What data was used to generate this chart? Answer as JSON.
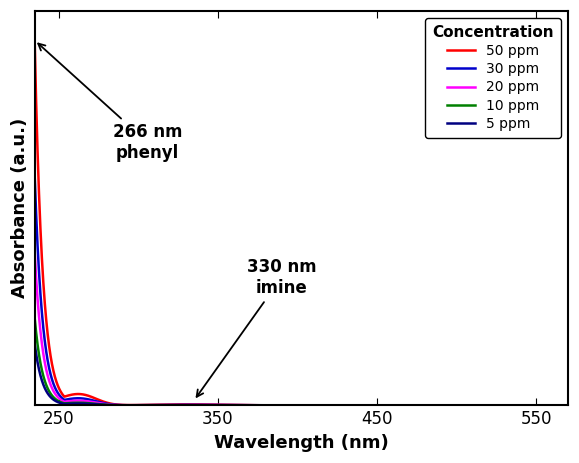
{
  "title": "",
  "xlabel": "Wavelength (nm)",
  "ylabel": "Absorbance (a.u.)",
  "xlim": [
    235,
    570
  ],
  "ylim": [
    0,
    1.08
  ],
  "xticks": [
    250,
    350,
    450,
    550
  ],
  "legend_title": "Concentration",
  "concentrations": [
    "50 ppm",
    "30 ppm",
    "20 ppm",
    "10 ppm",
    "  5 ppm"
  ],
  "colors": [
    "#ff0000",
    "#0000cc",
    "#ff00ff",
    "#008000",
    "#000080"
  ],
  "scale_factors": [
    1.0,
    0.63,
    0.42,
    0.24,
    0.17
  ],
  "annotation1_text": "266 nm\nphenyl",
  "annotation2_text": "330 nm\nimine",
  "background_color": "#ffffff",
  "axes_background": "#ffffff"
}
